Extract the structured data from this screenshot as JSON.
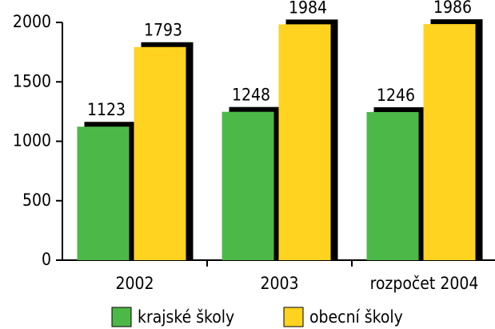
{
  "chart_data": {
    "type": "bar",
    "categories": [
      "2002",
      "2003",
      "rozpočet 2004"
    ],
    "series": [
      {
        "name": "krajské školy",
        "color": "#4cb848",
        "values": [
          1123,
          1248,
          1246
        ]
      },
      {
        "name": "obecní školy",
        "color": "#ffd320",
        "values": [
          1793,
          1984,
          1986
        ]
      }
    ],
    "ylim": [
      0,
      2000
    ],
    "yticks": [
      0,
      500,
      1000,
      1500,
      2000
    ],
    "grid": false
  }
}
